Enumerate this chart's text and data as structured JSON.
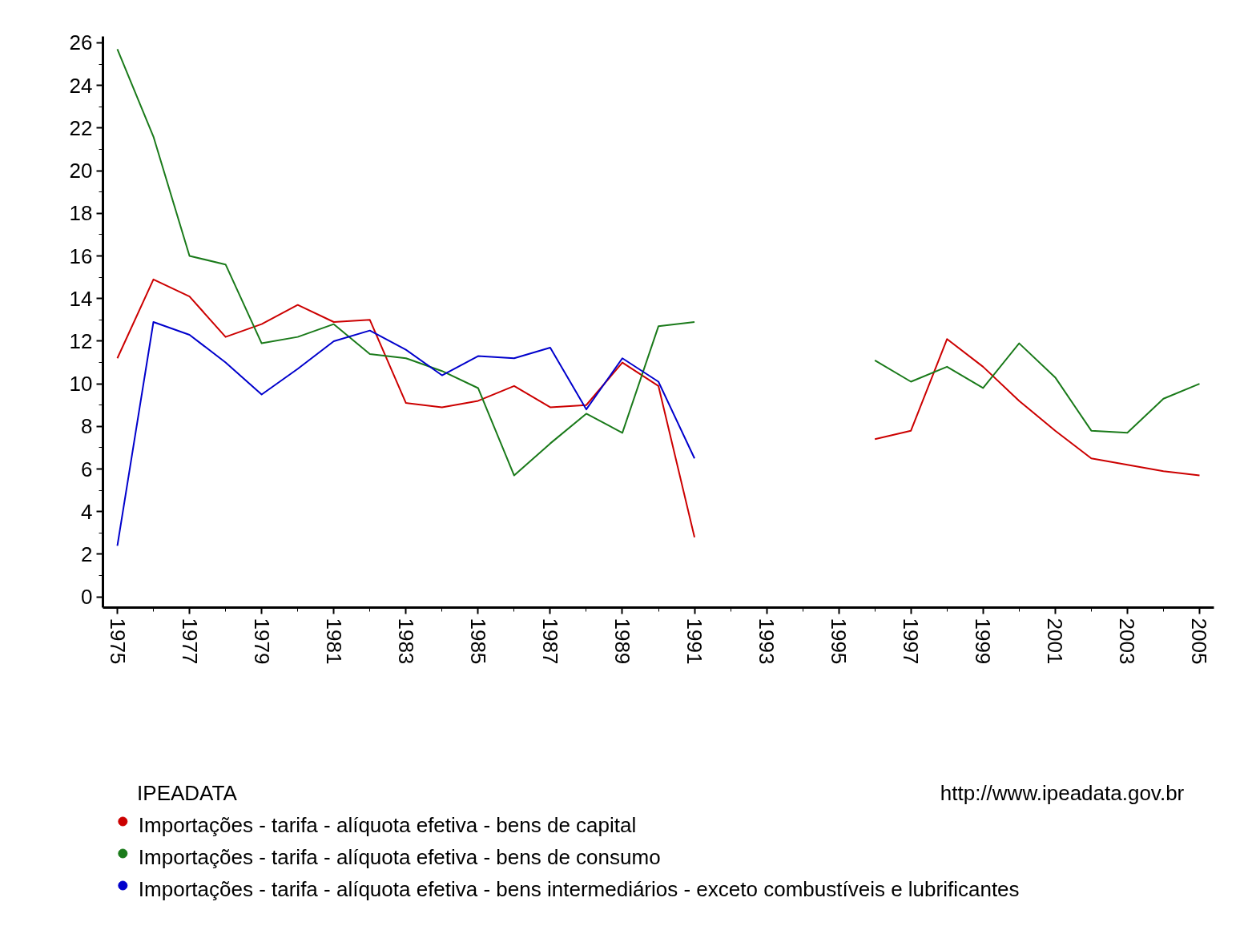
{
  "chart_data": {
    "type": "line",
    "legend_title": "IPEADATA",
    "annotations": [
      "http://www.ipeadata.gov.br"
    ],
    "x": [
      1975,
      1976,
      1977,
      1978,
      1979,
      1980,
      1981,
      1982,
      1983,
      1984,
      1985,
      1986,
      1987,
      1988,
      1989,
      1990,
      1991,
      1992,
      1993,
      1994,
      1995,
      1996,
      1997,
      1998,
      1999,
      2000,
      2001,
      2002,
      2003,
      2004,
      2005
    ],
    "series": [
      {
        "name": "Importações - tarifa - alíquota efetiva - bens de capital",
        "color": "#cc0000",
        "values": [
          11.2,
          14.9,
          14.1,
          12.2,
          12.8,
          13.7,
          12.9,
          13.0,
          9.1,
          8.9,
          9.2,
          9.9,
          8.9,
          9.0,
          11.0,
          9.9,
          2.8,
          null,
          null,
          null,
          null,
          7.4,
          7.8,
          12.1,
          10.8,
          9.2,
          7.8,
          6.5,
          6.2,
          5.9,
          5.7
        ]
      },
      {
        "name": "Importações - tarifa - alíquota efetiva - bens de consumo",
        "color": "#1a7a1a",
        "values": [
          25.7,
          21.6,
          16.0,
          15.6,
          11.9,
          12.2,
          12.8,
          11.4,
          11.2,
          10.6,
          9.8,
          5.7,
          7.2,
          8.6,
          7.7,
          12.7,
          12.9,
          null,
          null,
          null,
          null,
          11.1,
          10.1,
          10.8,
          9.8,
          11.9,
          10.3,
          7.8,
          7.7,
          9.3,
          10.0
        ]
      },
      {
        "name": "Importações - tarifa - alíquota efetiva - bens intermediários - exceto combustíveis e lubrificantes",
        "color": "#0000cc",
        "values": [
          2.4,
          12.9,
          12.3,
          11.0,
          9.5,
          10.7,
          12.0,
          12.5,
          11.6,
          10.4,
          11.3,
          11.2,
          11.7,
          8.8,
          11.2,
          10.1,
          6.5,
          null,
          null,
          null,
          null,
          null,
          null,
          null,
          null,
          null,
          null,
          null,
          null,
          null,
          null
        ]
      }
    ],
    "xlim": [
      1974.6,
      2005.4
    ],
    "xticks": [
      1975,
      1977,
      1979,
      1981,
      1983,
      1985,
      1987,
      1989,
      1991,
      1993,
      1995,
      1997,
      1999,
      2001,
      2003,
      2005
    ],
    "ylim": [
      -0.5,
      26.3
    ],
    "yticks": [
      0,
      2,
      4,
      6,
      8,
      10,
      12,
      14,
      16,
      18,
      20,
      22,
      24,
      26
    ],
    "grid": false,
    "legend": "bottom"
  }
}
